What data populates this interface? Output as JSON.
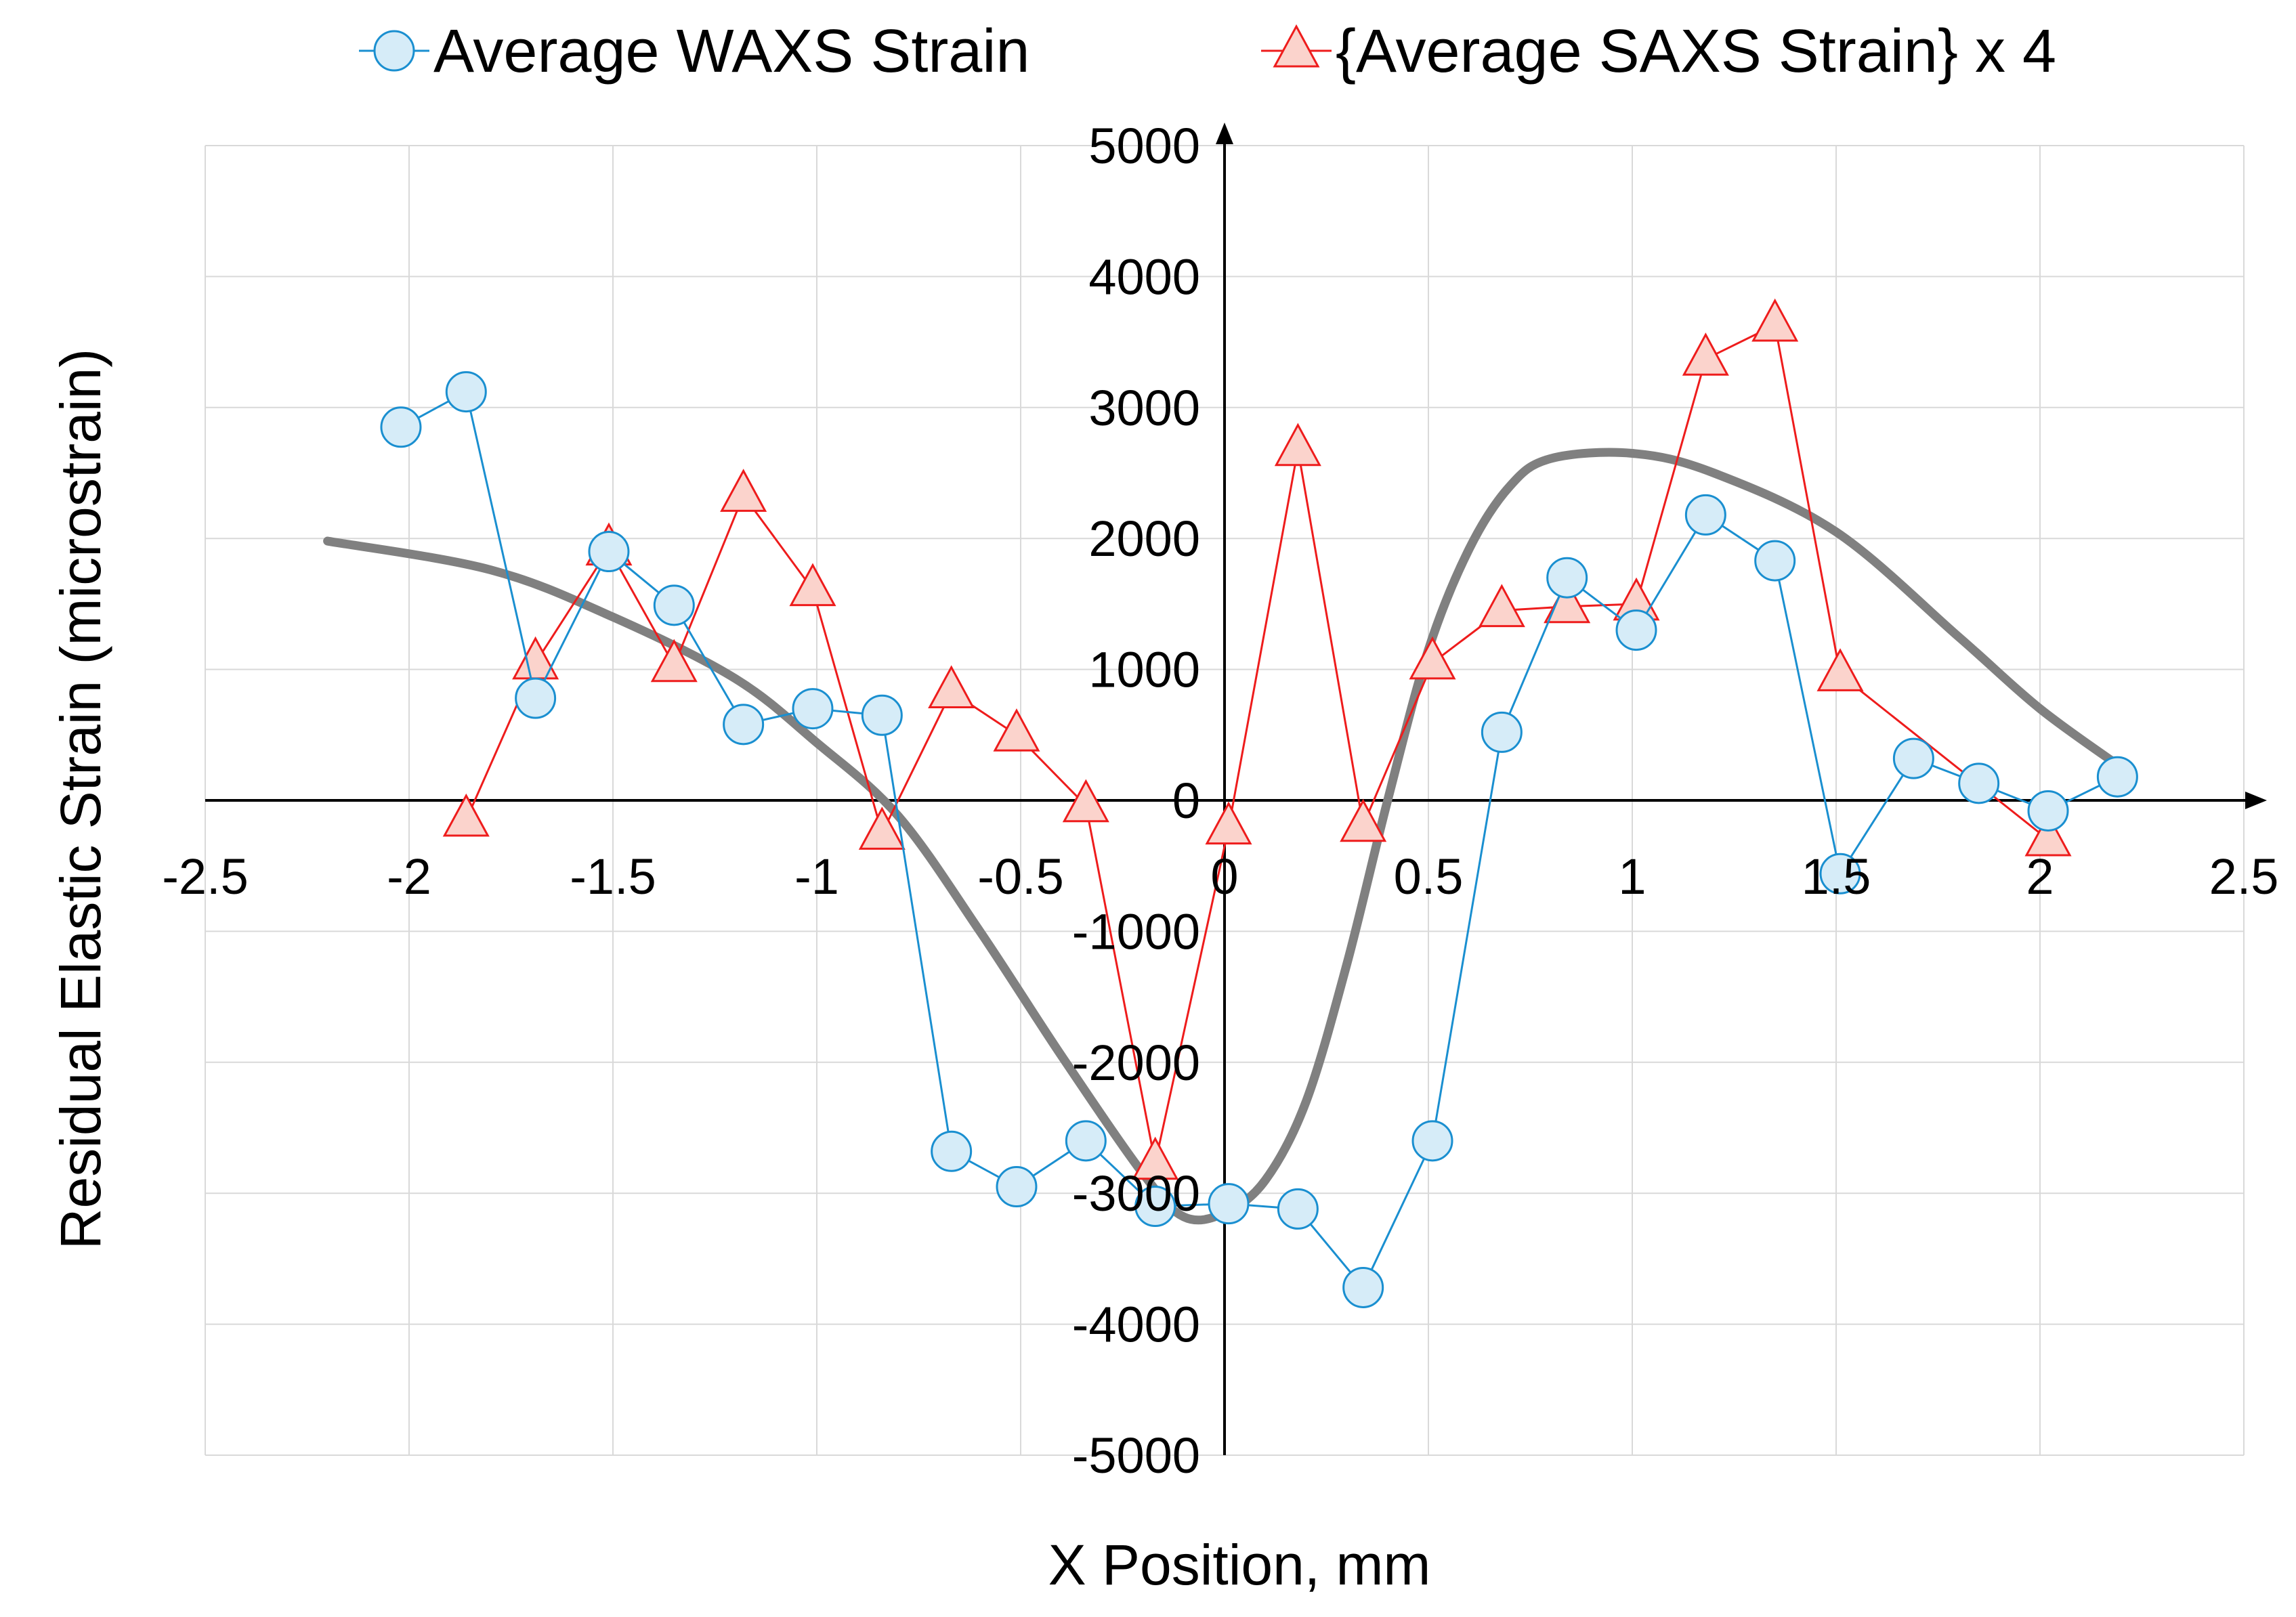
{
  "chart_data": {
    "type": "line",
    "title": "",
    "xlabel": "X Position, mm",
    "ylabel": "Residual Elastic Strain (microstrain)",
    "xlim": [
      -2.5,
      2.5
    ],
    "ylim": [
      -5000,
      5000
    ],
    "x_ticks": [
      -2.5,
      -2,
      -1.5,
      -1,
      -0.5,
      0,
      0.5,
      1,
      1.5,
      2,
      2.5
    ],
    "y_ticks": [
      -5000,
      -4000,
      -3000,
      -2000,
      -1000,
      0,
      1000,
      2000,
      3000,
      4000,
      5000
    ],
    "x_tick_labels": [
      "-2.5",
      "-2",
      "-1.5",
      "-1",
      "-0.5",
      "0",
      "0.5",
      "1",
      "1.5",
      "2",
      "2.5"
    ],
    "y_tick_labels": [
      "-5000",
      "-4000",
      "-3000",
      "-2000",
      "-1000",
      "0",
      "1000",
      "2000",
      "3000",
      "4000",
      "5000"
    ],
    "grid": true,
    "legend_position": "top",
    "series": [
      {
        "name": "Average WAXS Strain",
        "color": "#1a8fd0",
        "fill": "#d6ecf8",
        "marker": "circle",
        "x": [
          -2.02,
          -1.86,
          -1.69,
          -1.51,
          -1.35,
          -1.18,
          -1.01,
          -0.84,
          -0.67,
          -0.51,
          -0.34,
          -0.17,
          0.01,
          0.18,
          0.34,
          0.51,
          0.68,
          0.84,
          1.01,
          1.18,
          1.35,
          1.51,
          1.69,
          1.85,
          2.02,
          2.19
        ],
        "y": [
          2850,
          3120,
          780,
          1900,
          1490,
          580,
          700,
          650,
          -2680,
          -2950,
          -2600,
          -3100,
          -3080,
          -3120,
          -3720,
          -2600,
          520,
          1700,
          1300,
          2180,
          1830,
          -560,
          320,
          130,
          -80,
          180
        ]
      },
      {
        "name": "{Average SAXS Strain} x 4",
        "color": "#ee1c1c",
        "fill": "#fbd3cc",
        "marker": "triangle",
        "x": [
          -1.86,
          -1.69,
          -1.51,
          -1.35,
          -1.18,
          -1.01,
          -0.84,
          -0.67,
          -0.51,
          -0.34,
          -0.17,
          0.01,
          0.18,
          0.34,
          0.51,
          0.68,
          0.84,
          1.01,
          1.18,
          1.35,
          1.51,
          2.02
        ],
        "y": [
          -150,
          1050,
          1920,
          1030,
          2330,
          1610,
          -250,
          830,
          500,
          -40,
          -2770,
          -210,
          2680,
          -190,
          1050,
          1450,
          1480,
          1500,
          3370,
          3630,
          960,
          -300
        ]
      },
      {
        "name": "trend-curve",
        "color": "#808080",
        "marker": "none",
        "x": [
          -2.2,
          -1.8,
          -1.5,
          -1.2,
          -1.0,
          -0.8,
          -0.6,
          -0.4,
          -0.2,
          -0.1,
          0.0,
          0.1,
          0.2,
          0.3,
          0.4,
          0.5,
          0.6,
          0.7,
          0.8,
          1.0,
          1.2,
          1.5,
          1.8,
          2.0,
          2.2
        ],
        "y": [
          1980,
          1760,
          1400,
          930,
          440,
          -120,
          -1000,
          -1950,
          -2850,
          -3180,
          -3150,
          -2900,
          -2300,
          -1250,
          0,
          1150,
          1920,
          2400,
          2610,
          2650,
          2500,
          2050,
          1250,
          700,
          250
        ]
      }
    ]
  }
}
